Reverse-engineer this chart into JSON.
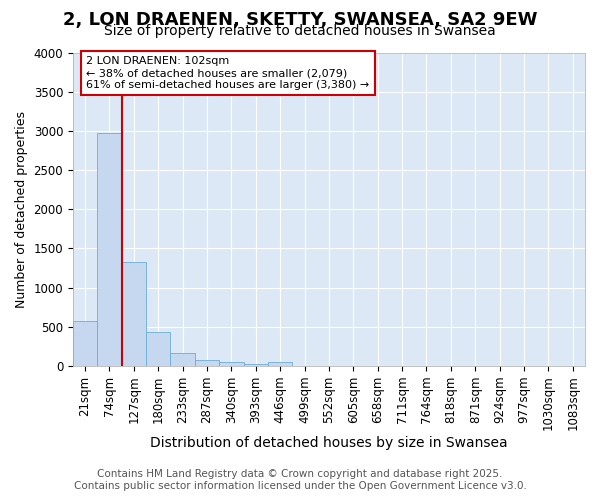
{
  "title": "2, LON DRAENEN, SKETTY, SWANSEA, SA2 9EW",
  "subtitle": "Size of property relative to detached houses in Swansea",
  "xlabel": "Distribution of detached houses by size in Swansea",
  "ylabel": "Number of detached properties",
  "bin_labels": [
    "21sqm",
    "74sqm",
    "127sqm",
    "180sqm",
    "233sqm",
    "287sqm",
    "340sqm",
    "393sqm",
    "446sqm",
    "499sqm",
    "552sqm",
    "605sqm",
    "658sqm",
    "711sqm",
    "764sqm",
    "818sqm",
    "871sqm",
    "924sqm",
    "977sqm",
    "1030sqm",
    "1083sqm"
  ],
  "bar_values": [
    580,
    2970,
    1330,
    430,
    160,
    80,
    50,
    30,
    50,
    0,
    0,
    0,
    0,
    0,
    0,
    0,
    0,
    0,
    0,
    0,
    0
  ],
  "bar_color": "#c5d8f0",
  "bar_edgecolor": "#6baed6",
  "ylim": [
    0,
    4000
  ],
  "yticks": [
    0,
    500,
    1000,
    1500,
    2000,
    2500,
    3000,
    3500,
    4000
  ],
  "vline_x": 1.53,
  "vline_color": "#cc0000",
  "annotation_text": "2 LON DRAENEN: 102sqm\n← 38% of detached houses are smaller (2,079)\n61% of semi-detached houses are larger (3,380) →",
  "annotation_box_edgecolor": "#cc0000",
  "footer_line1": "Contains HM Land Registry data © Crown copyright and database right 2025.",
  "footer_line2": "Contains public sector information licensed under the Open Government Licence v3.0.",
  "bg_color": "#ffffff",
  "plot_bg_color": "#dce8f5",
  "grid_color": "#ffffff",
  "title_fontsize": 13,
  "subtitle_fontsize": 10,
  "xlabel_fontsize": 10,
  "ylabel_fontsize": 9,
  "tick_fontsize": 8.5,
  "footer_fontsize": 7.5
}
